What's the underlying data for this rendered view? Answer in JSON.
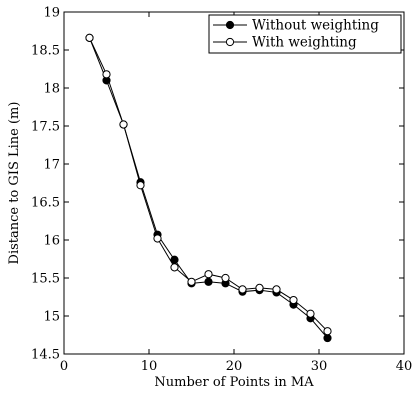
{
  "chart_data": {
    "type": "line",
    "xlabel": "Number of Points in MA",
    "ylabel": "Distance to GIS Line (m)",
    "xlim": [
      0,
      40
    ],
    "ylim": [
      14.5,
      19
    ],
    "x_ticks": [
      0,
      10,
      20,
      30,
      40
    ],
    "y_ticks": [
      14.5,
      15,
      15.5,
      16,
      16.5,
      17,
      17.5,
      18,
      18.5,
      19
    ],
    "x_tick_labels": [
      "0",
      "10",
      "20",
      "30",
      "40"
    ],
    "y_tick_labels": [
      "14.5",
      "15",
      "15.5",
      "16",
      "16.5",
      "17",
      "17.5",
      "18",
      "18.5",
      "19"
    ],
    "grid": false,
    "legend_position": "top-right",
    "x": [
      3,
      5,
      7,
      9,
      11,
      13,
      15,
      17,
      19,
      21,
      23,
      25,
      27,
      29,
      31
    ],
    "series": [
      {
        "name": "Without weighting",
        "marker": "filled-circle",
        "color": "#000000",
        "values": [
          18.66,
          18.1,
          17.52,
          16.76,
          16.07,
          15.74,
          15.43,
          15.45,
          15.43,
          15.32,
          15.34,
          15.31,
          15.15,
          14.97,
          14.71
        ]
      },
      {
        "name": "With weighting",
        "marker": "open-circle",
        "color": "#000000",
        "values": [
          18.66,
          18.18,
          17.52,
          16.72,
          16.02,
          15.64,
          15.45,
          15.55,
          15.5,
          15.35,
          15.37,
          15.35,
          15.21,
          15.03,
          14.8
        ]
      }
    ]
  }
}
